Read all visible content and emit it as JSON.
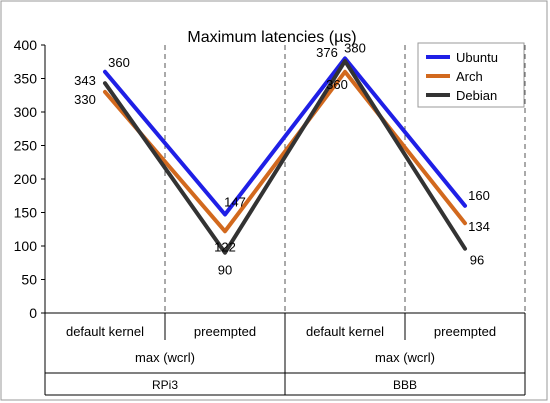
{
  "chart_data": {
    "type": "line",
    "title": "Maximum latencies (µs)",
    "xlabel": "",
    "ylabel": "",
    "ylim": [
      0,
      400
    ],
    "yticks": [
      0,
      50,
      100,
      150,
      200,
      250,
      300,
      350,
      400
    ],
    "grid": false,
    "legend_position": "top-right",
    "categories": [
      "default kernel",
      "preempted",
      "default kernel",
      "preempted"
    ],
    "category_groups": [
      {
        "label": "max (wcrl)",
        "span": [
          0,
          1
        ]
      },
      {
        "label": "max (wcrl)",
        "span": [
          2,
          3
        ]
      }
    ],
    "platform_groups": [
      {
        "label": "RPi3",
        "span": [
          0,
          1
        ]
      },
      {
        "label": "BBB",
        "span": [
          2,
          3
        ]
      }
    ],
    "series": [
      {
        "name": "Ubuntu",
        "color": "#1f1fe6",
        "values": [
          360,
          147,
          380,
          160
        ]
      },
      {
        "name": "Arch",
        "color": "#d2691e",
        "values": [
          330,
          122,
          360,
          134
        ]
      },
      {
        "name": "Debian",
        "color": "#333333",
        "values": [
          343,
          90,
          376,
          96
        ]
      }
    ]
  }
}
